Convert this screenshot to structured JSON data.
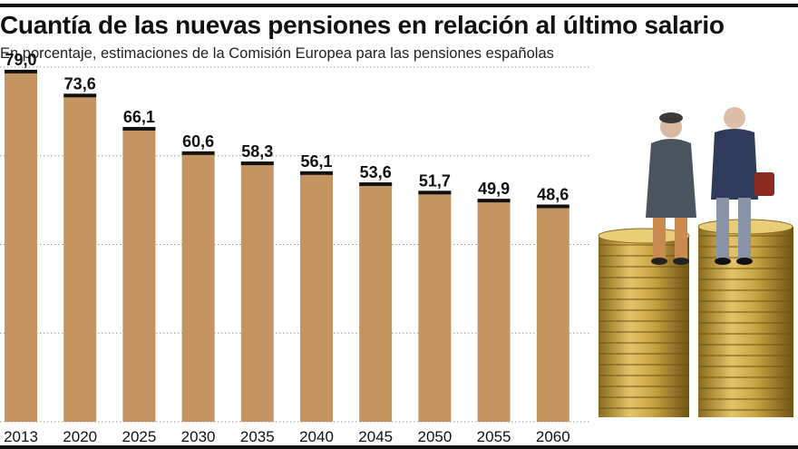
{
  "title": "Cuantía de las nuevas pensiones en relación al último salario",
  "subtitle": "En porcentaje, estimaciones de la Comisión Europea para las pensiones españolas",
  "colors": {
    "bar": "#c49563",
    "bar_cap": "#111111",
    "grid": "#9a9a9a",
    "text": "#111111"
  },
  "illustration": {
    "icon": "pensioners-on-coin-stacks-image"
  },
  "chart_data": {
    "type": "bar",
    "categories": [
      "2013",
      "2020",
      "2025",
      "2030",
      "2035",
      "2040",
      "2045",
      "2050",
      "2055",
      "2060"
    ],
    "values": [
      79.0,
      73.6,
      66.1,
      60.6,
      58.3,
      56.1,
      53.6,
      51.7,
      49.9,
      48.6
    ],
    "value_labels": [
      "79,0",
      "73,6",
      "66,1",
      "60,6",
      "58,3",
      "56,1",
      "53,6",
      "51,7",
      "49,9",
      "48,6"
    ],
    "title": "Cuantía de las nuevas pensiones en relación al último salario",
    "subtitle": "En porcentaje, estimaciones de la Comisión Europea para las pensiones españolas",
    "ylim": [
      0,
      80
    ],
    "grid": true,
    "grid_values": [
      0,
      20,
      40,
      60,
      80
    ]
  }
}
